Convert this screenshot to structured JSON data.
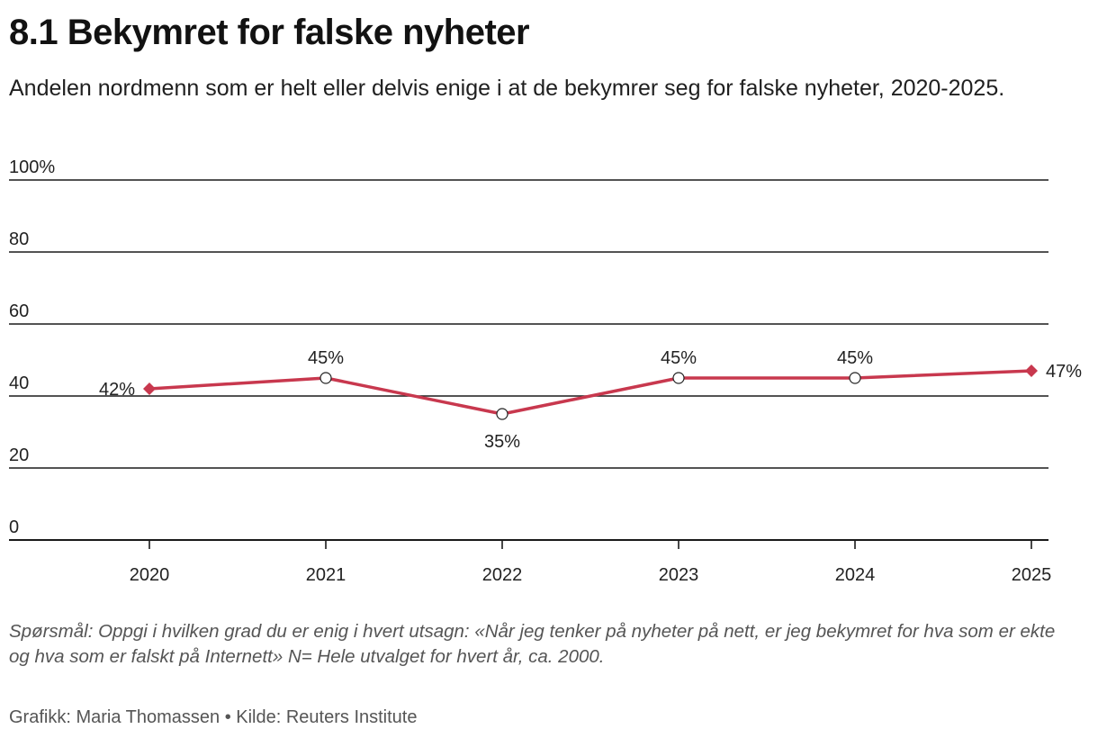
{
  "header": {
    "title": "8.1 Bekymret for falske nyheter",
    "subtitle": "Andelen nordmenn som er helt eller delvis enige i at de bekymrer seg for falske nyheter, 2020-2025."
  },
  "chart_data": {
    "type": "line",
    "categories": [
      "2020",
      "2021",
      "2022",
      "2023",
      "2024",
      "2025"
    ],
    "series": [
      {
        "values": [
          42,
          45,
          35,
          45,
          45,
          47
        ],
        "data_labels": [
          "42%",
          "45%",
          "35%",
          "45%",
          "45%",
          "47%"
        ],
        "color": "#c8384e"
      }
    ],
    "y_ticks": [
      "0",
      "20",
      "40",
      "60",
      "80",
      "100%"
    ],
    "y_tick_values": [
      0,
      20,
      40,
      60,
      80,
      100
    ],
    "ylim": [
      0,
      100
    ],
    "grid": true,
    "legend": "none",
    "colors": {
      "line": "#c8384e",
      "grid": "#1a1a1a",
      "marker_open": "#ffffff",
      "marker_stroke": "#222222"
    }
  },
  "footer": {
    "note": "Spørsmål: Oppgi i hvilken grad du er enig i hvert utsagn: «Når jeg tenker på nyheter på nett, er jeg bekymret for hva som er ekte og hva som er falskt på Internett» N= Hele utvalget for hvert år, ca. 2000.",
    "credit": "Grafikk: Maria Thomassen • Kilde: Reuters Institute"
  }
}
